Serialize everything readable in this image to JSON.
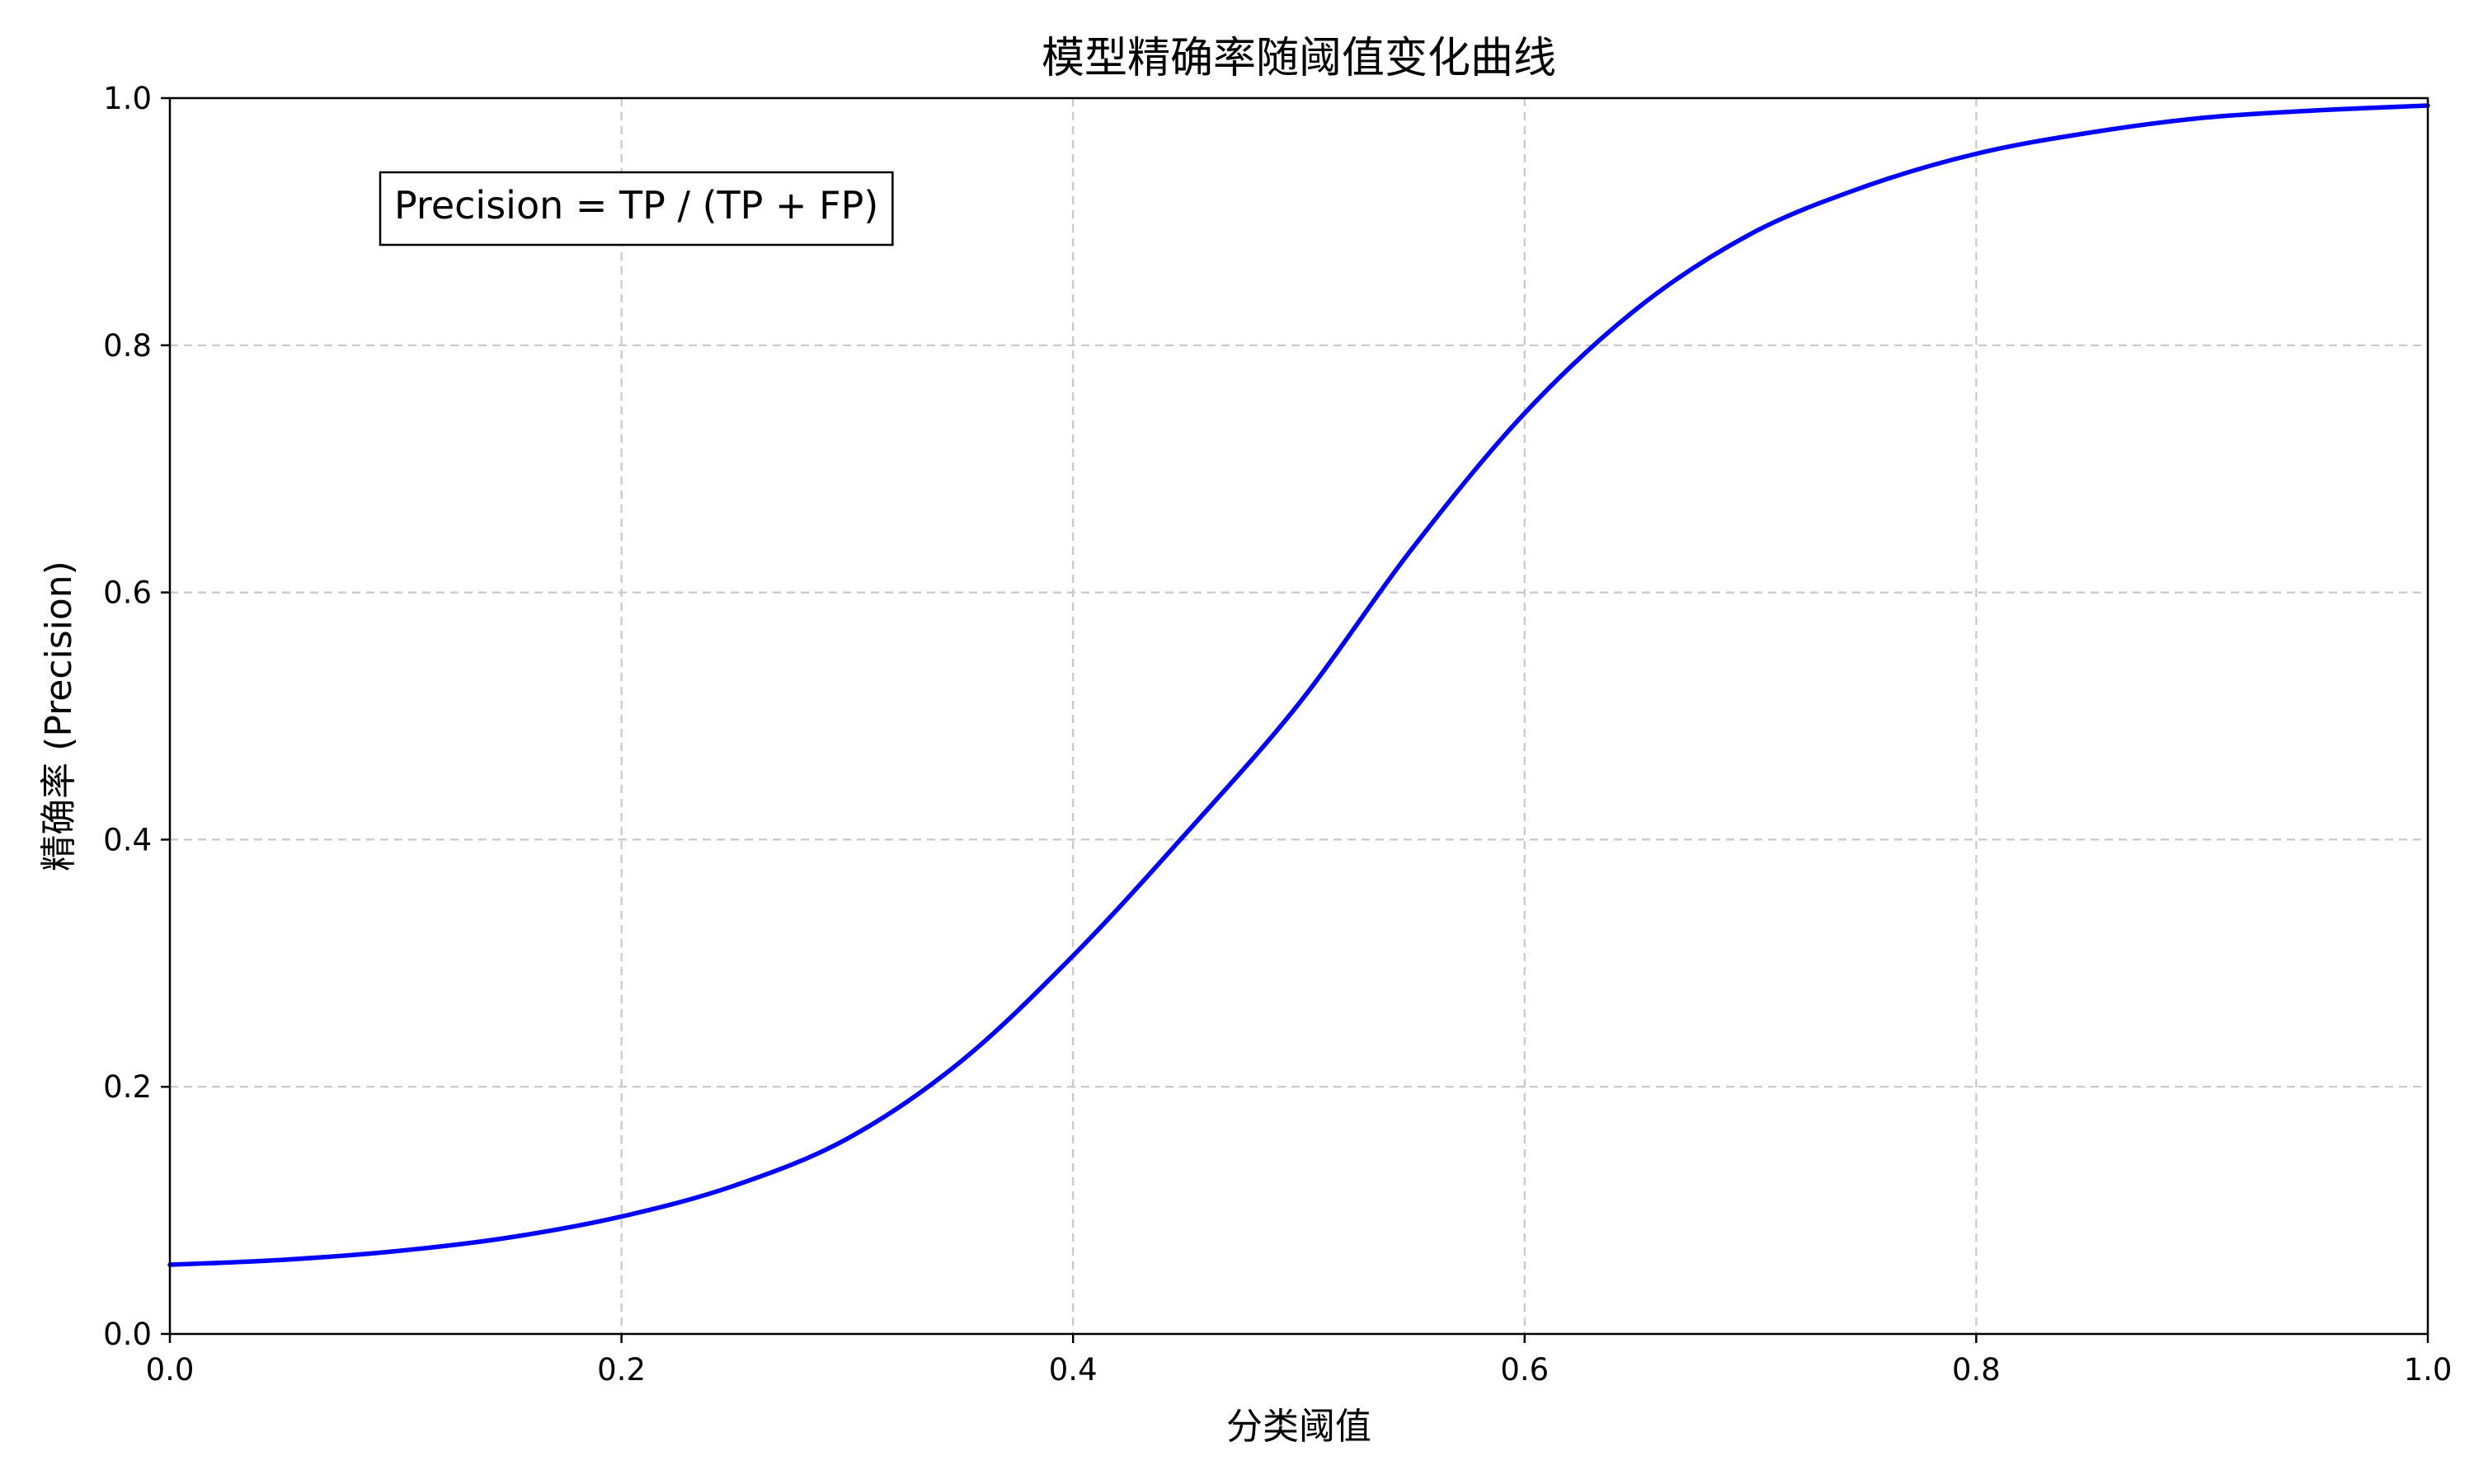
{
  "chart_data": {
    "type": "line",
    "title": "模型精确率随阈值变化曲线",
    "xlabel": "分类阈值",
    "ylabel": "精确率 (Precision)",
    "xlim": [
      0.0,
      1.0
    ],
    "ylim": [
      0.0,
      1.0
    ],
    "xticks": [
      "0.0",
      "0.2",
      "0.4",
      "0.6",
      "0.8",
      "1.0"
    ],
    "yticks": [
      "0.0",
      "0.2",
      "0.4",
      "0.6",
      "0.8",
      "1.0"
    ],
    "grid": true,
    "annotation": "Precision = TP / (TP + FP)",
    "series": [
      {
        "color": "#0000ff",
        "x": [
          0.0,
          0.05,
          0.1,
          0.15,
          0.2,
          0.25,
          0.3,
          0.35,
          0.4,
          0.45,
          0.5,
          0.55,
          0.6,
          0.65,
          0.7,
          0.75,
          0.8,
          0.85,
          0.9,
          0.95,
          1.0
        ],
        "y": [
          0.056,
          0.06,
          0.067,
          0.078,
          0.095,
          0.12,
          0.158,
          0.22,
          0.306,
          0.405,
          0.51,
          0.635,
          0.745,
          0.83,
          0.89,
          0.928,
          0.955,
          0.972,
          0.984,
          0.99,
          0.994
        ]
      }
    ]
  }
}
